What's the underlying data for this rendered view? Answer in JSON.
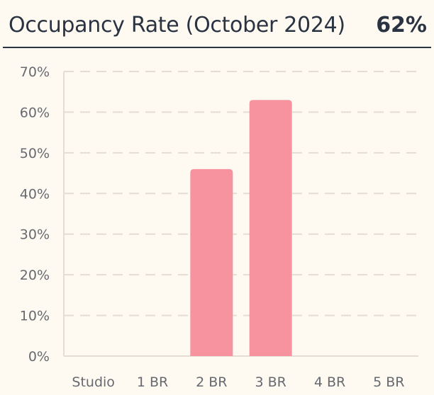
{
  "header": {
    "title": "Occupancy Rate (October 2024)",
    "value": "62%"
  },
  "colors": {
    "bar": "#f7939f",
    "grid": "#e4ddd3",
    "axis": "#666a70",
    "text": "#2a3342",
    "background": "#fffaf1"
  },
  "chart_data": {
    "type": "bar",
    "title": "Occupancy Rate (October 2024)",
    "categories": [
      "Studio",
      "1 BR",
      "2 BR",
      "3 BR",
      "4 BR",
      "5 BR"
    ],
    "values": [
      0,
      0,
      46,
      63,
      0,
      0
    ],
    "unit": "%",
    "ylim": [
      0,
      70
    ],
    "yticks": [
      0,
      10,
      20,
      30,
      40,
      50,
      60,
      70
    ],
    "ytick_labels": [
      "0%",
      "10%",
      "20%",
      "30%",
      "40%",
      "50%",
      "60%",
      "70%"
    ],
    "grid": true,
    "grid_style": "dashed",
    "legend": "none"
  }
}
